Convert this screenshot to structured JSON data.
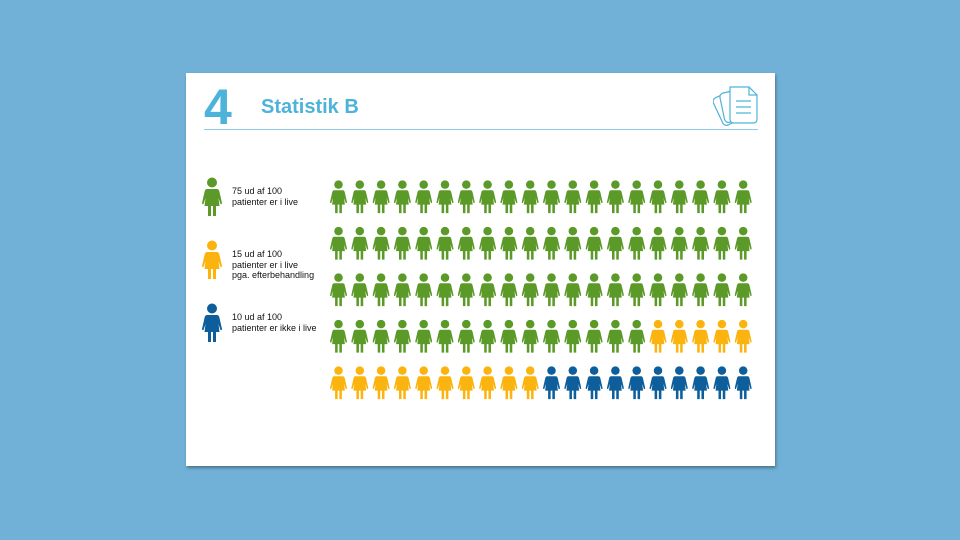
{
  "slide": {
    "number": "4",
    "title": "Statistik B"
  },
  "chart_data": {
    "type": "pictogram",
    "columns": 20,
    "rows": 5,
    "total": 100,
    "series": [
      {
        "name": "75 ud af 100\npatienter er i live",
        "value": 75,
        "color": "#5b9a28"
      },
      {
        "name": "15 ud af 100\npatienter er i live\npga. efterbehandling",
        "value": 15,
        "color": "#fbb40f"
      },
      {
        "name": "10 ud af 100\npatienter er ikke i live",
        "value": 10,
        "color": "#0d5e9b"
      }
    ]
  }
}
